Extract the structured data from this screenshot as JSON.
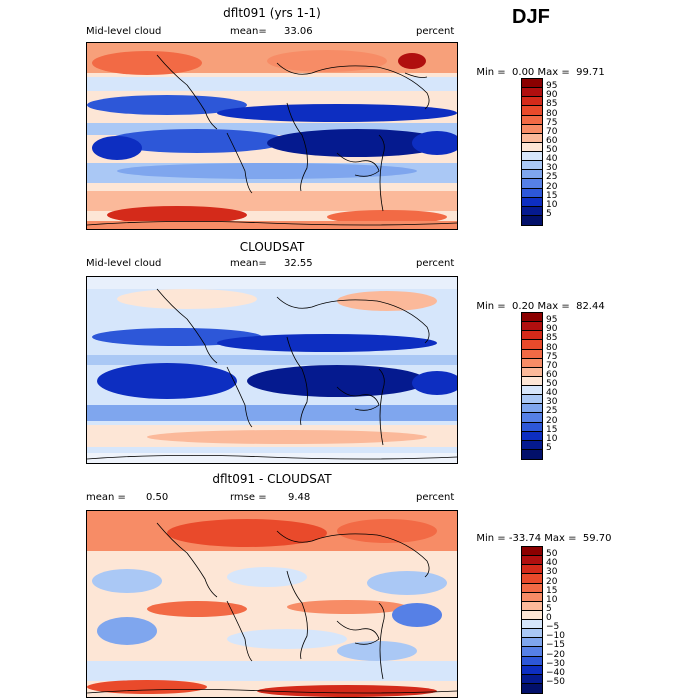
{
  "season": "DJF",
  "panels": [
    {
      "title": "dflt091 (yrs 1-1)",
      "left_label": "Mid-level cloud",
      "mid_label": "mean=",
      "mid_value": "33.06",
      "right_label": "percent",
      "min_label": "Min =",
      "min_value": "0.00",
      "max_label": "Max =",
      "max_value": "99.71",
      "colorbar": [
        "95",
        "90",
        "85",
        "80",
        "75",
        "70",
        "60",
        "50",
        "40",
        "30",
        "25",
        "20",
        "15",
        "10",
        "5"
      ],
      "colors": [
        "#8b0000",
        "#b00f0f",
        "#d42a1a",
        "#e94a2b",
        "#f26a45",
        "#f78c66",
        "#fbb99a",
        "#fde6d6",
        "#d6e6fb",
        "#aac8f5",
        "#7fa6ee",
        "#5680e6",
        "#2d57d8",
        "#0d2ec1",
        "#051a8f",
        "#02106a"
      ]
    },
    {
      "title": "CLOUDSAT",
      "left_label": "Mid-level cloud",
      "mid_label": "mean=",
      "mid_value": "32.55",
      "right_label": "percent",
      "min_label": "Min =",
      "min_value": "0.20",
      "max_label": "Max =",
      "max_value": "82.44",
      "colorbar": [
        "95",
        "90",
        "85",
        "80",
        "75",
        "70",
        "60",
        "50",
        "40",
        "30",
        "25",
        "20",
        "15",
        "10",
        "5"
      ],
      "colors": [
        "#8b0000",
        "#b00f0f",
        "#d42a1a",
        "#e94a2b",
        "#f26a45",
        "#f78c66",
        "#fbb99a",
        "#fde6d6",
        "#d6e6fb",
        "#aac8f5",
        "#7fa6ee",
        "#5680e6",
        "#2d57d8",
        "#0d2ec1",
        "#051a8f",
        "#02106a"
      ]
    },
    {
      "title": "dflt091 - CLOUDSAT",
      "left_label": "mean =",
      "left_value": "0.50",
      "mid_label": "rmse =",
      "mid_value": "9.48",
      "right_label": "percent",
      "min_label": "Min =",
      "min_value": "-33.74",
      "max_label": "Max =",
      "max_value": "59.70",
      "colorbar": [
        "50",
        "40",
        "30",
        "20",
        "15",
        "10",
        "5",
        "0",
        "−5",
        "−10",
        "−15",
        "−20",
        "−30",
        "−40",
        "−50"
      ],
      "colors": [
        "#8b0000",
        "#b00f0f",
        "#d42a1a",
        "#e94a2b",
        "#f26a45",
        "#f78c66",
        "#fbb99a",
        "#fde6d6",
        "#d6e6fb",
        "#aac8f5",
        "#7fa6ee",
        "#5680e6",
        "#2d57d8",
        "#0d2ec1",
        "#051a8f",
        "#02106a"
      ]
    }
  ],
  "chart_data": [
    {
      "type": "heatmap",
      "title": "dflt091 (yrs 1-1)",
      "variable": "Mid-level cloud",
      "units": "percent",
      "season": "DJF",
      "mean": 33.06,
      "min": 0.0,
      "max": 99.71,
      "contour_levels": [
        5,
        10,
        15,
        20,
        25,
        30,
        40,
        50,
        60,
        70,
        75,
        80,
        85,
        90,
        95
      ]
    },
    {
      "type": "heatmap",
      "title": "CLOUDSAT",
      "variable": "Mid-level cloud",
      "units": "percent",
      "season": "DJF",
      "mean": 32.55,
      "min": 0.2,
      "max": 82.44,
      "contour_levels": [
        5,
        10,
        15,
        20,
        25,
        30,
        40,
        50,
        60,
        70,
        75,
        80,
        85,
        90,
        95
      ]
    },
    {
      "type": "heatmap",
      "title": "dflt091 - CLOUDSAT",
      "units": "percent",
      "season": "DJF",
      "mean": 0.5,
      "rmse": 9.48,
      "min": -33.74,
      "max": 59.7,
      "contour_levels": [
        -50,
        -40,
        -30,
        -20,
        -15,
        -10,
        -5,
        0,
        5,
        10,
        15,
        20,
        30,
        40,
        50
      ]
    }
  ]
}
